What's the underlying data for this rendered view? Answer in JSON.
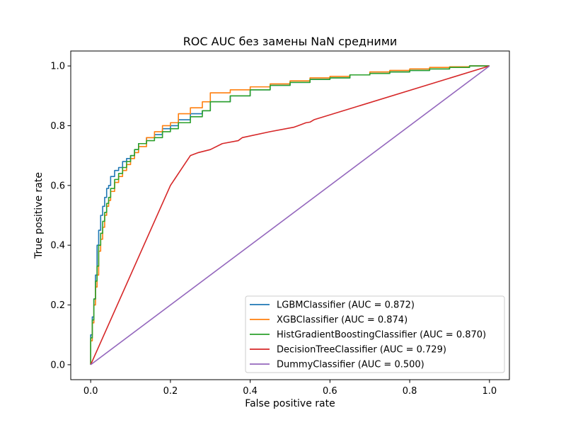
{
  "chart_data": {
    "type": "line",
    "title": "ROC AUC без замены NaN средними",
    "xlabel": "False positive rate",
    "ylabel": "True positive rate",
    "xlim": [
      -0.05,
      1.05
    ],
    "ylim": [
      -0.05,
      1.05
    ],
    "xticks": [
      0.0,
      0.2,
      0.4,
      0.6,
      0.8,
      1.0
    ],
    "yticks": [
      0.0,
      0.2,
      0.4,
      0.6,
      0.8,
      1.0
    ],
    "xtick_labels": [
      "0.0",
      "0.2",
      "0.4",
      "0.6",
      "0.8",
      "1.0"
    ],
    "ytick_labels": [
      "0.0",
      "0.2",
      "0.4",
      "0.6",
      "0.8",
      "1.0"
    ],
    "grid": false,
    "legend_position": "lower-right",
    "series": [
      {
        "name": "LGBMClassifier (AUC = 0.872)",
        "color": "#1f77b4",
        "x": [
          0.0,
          0.004,
          0.008,
          0.012,
          0.016,
          0.02,
          0.025,
          0.03,
          0.035,
          0.04,
          0.045,
          0.05,
          0.06,
          0.07,
          0.08,
          0.09,
          0.1,
          0.11,
          0.12,
          0.14,
          0.16,
          0.18,
          0.2,
          0.22,
          0.25,
          0.28,
          0.3,
          0.35,
          0.4,
          0.45,
          0.5,
          0.55,
          0.6,
          0.65,
          0.7,
          0.75,
          0.8,
          0.85,
          0.9,
          0.95,
          1.0
        ],
        "y": [
          0.0,
          0.1,
          0.16,
          0.22,
          0.3,
          0.4,
          0.45,
          0.5,
          0.53,
          0.56,
          0.59,
          0.6,
          0.63,
          0.65,
          0.66,
          0.68,
          0.69,
          0.7,
          0.72,
          0.74,
          0.76,
          0.77,
          0.79,
          0.8,
          0.82,
          0.84,
          0.85,
          0.88,
          0.9,
          0.92,
          0.935,
          0.945,
          0.955,
          0.96,
          0.97,
          0.975,
          0.98,
          0.985,
          0.99,
          0.995,
          1.0
        ]
      },
      {
        "name": "XGBClassifier (AUC = 0.874)",
        "color": "#ff7f0e",
        "x": [
          0.0,
          0.004,
          0.008,
          0.012,
          0.016,
          0.02,
          0.025,
          0.03,
          0.035,
          0.04,
          0.045,
          0.05,
          0.06,
          0.07,
          0.08,
          0.09,
          0.1,
          0.11,
          0.12,
          0.14,
          0.16,
          0.18,
          0.2,
          0.22,
          0.25,
          0.28,
          0.3,
          0.35,
          0.4,
          0.45,
          0.5,
          0.55,
          0.6,
          0.65,
          0.7,
          0.75,
          0.8,
          0.85,
          0.9,
          0.95,
          1.0
        ],
        "y": [
          0.0,
          0.08,
          0.14,
          0.2,
          0.26,
          0.3,
          0.38,
          0.42,
          0.46,
          0.5,
          0.53,
          0.55,
          0.58,
          0.61,
          0.63,
          0.65,
          0.67,
          0.69,
          0.71,
          0.73,
          0.76,
          0.78,
          0.8,
          0.81,
          0.84,
          0.86,
          0.88,
          0.91,
          0.92,
          0.93,
          0.94,
          0.95,
          0.96,
          0.965,
          0.97,
          0.98,
          0.985,
          0.99,
          0.995,
          0.997,
          1.0
        ]
      },
      {
        "name": "HistGradientBoostingClassifier (AUC = 0.870)",
        "color": "#2ca02c",
        "x": [
          0.0,
          0.004,
          0.008,
          0.012,
          0.016,
          0.02,
          0.025,
          0.03,
          0.035,
          0.04,
          0.045,
          0.05,
          0.06,
          0.07,
          0.08,
          0.09,
          0.1,
          0.11,
          0.12,
          0.14,
          0.16,
          0.18,
          0.2,
          0.22,
          0.25,
          0.28,
          0.3,
          0.35,
          0.4,
          0.45,
          0.5,
          0.55,
          0.6,
          0.65,
          0.7,
          0.75,
          0.8,
          0.85,
          0.9,
          0.95,
          1.0
        ],
        "y": [
          0.0,
          0.09,
          0.15,
          0.22,
          0.28,
          0.33,
          0.4,
          0.44,
          0.48,
          0.51,
          0.54,
          0.56,
          0.59,
          0.62,
          0.64,
          0.66,
          0.68,
          0.7,
          0.72,
          0.74,
          0.75,
          0.76,
          0.78,
          0.79,
          0.81,
          0.83,
          0.85,
          0.88,
          0.9,
          0.92,
          0.935,
          0.945,
          0.955,
          0.96,
          0.97,
          0.975,
          0.98,
          0.985,
          0.99,
          0.995,
          1.0
        ]
      },
      {
        "name": "DecisionTreeClassifier (AUC = 0.729)",
        "color": "#d62728",
        "x": [
          0.0,
          0.2,
          0.21,
          0.24,
          0.25,
          0.27,
          0.3,
          0.33,
          0.37,
          0.38,
          0.45,
          0.51,
          0.52,
          0.54,
          0.55,
          0.56,
          1.0
        ],
        "y": [
          0.0,
          0.6,
          0.62,
          0.68,
          0.7,
          0.71,
          0.72,
          0.74,
          0.75,
          0.76,
          0.78,
          0.795,
          0.8,
          0.81,
          0.812,
          0.82,
          1.0
        ]
      },
      {
        "name": "DummyClassifier (AUC = 0.500)",
        "color": "#9467bd",
        "x": [
          0.0,
          1.0
        ],
        "y": [
          0.0,
          1.0
        ]
      }
    ]
  }
}
